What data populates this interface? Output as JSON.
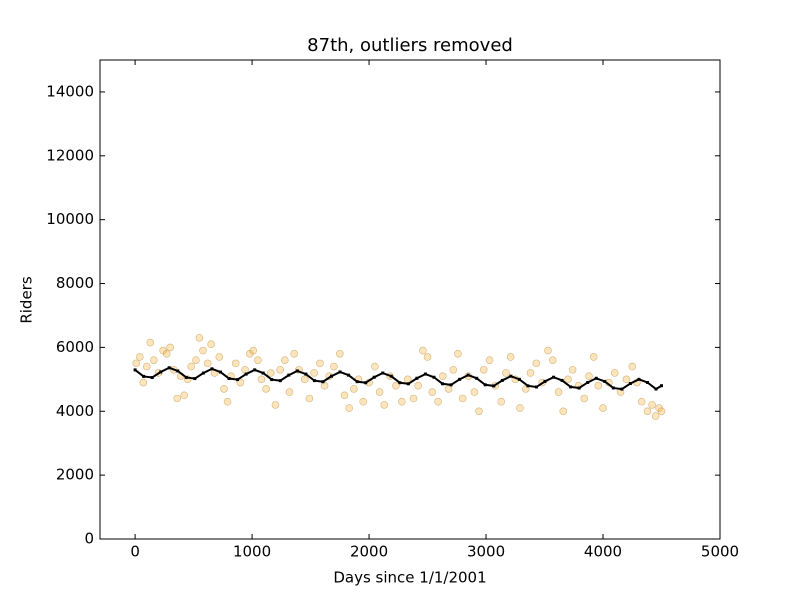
{
  "chart_data": {
    "type": "scatter",
    "title": "87th, outliers removed",
    "xlabel": "Days since 1/1/2001",
    "ylabel": "Riders",
    "xlim": [
      -300,
      5000
    ],
    "ylim": [
      0,
      15000
    ],
    "xticks": [
      0,
      1000,
      2000,
      3000,
      4000,
      5000
    ],
    "yticks": [
      0,
      2000,
      4000,
      6000,
      8000,
      10000,
      12000,
      14000
    ],
    "grid": false,
    "series": [
      {
        "type": "scatter",
        "color": "#f5a623",
        "x": [
          10,
          40,
          70,
          100,
          130,
          160,
          200,
          240,
          270,
          300,
          330,
          360,
          390,
          420,
          450,
          480,
          520,
          550,
          580,
          620,
          650,
          680,
          720,
          760,
          790,
          820,
          860,
          900,
          940,
          980,
          1010,
          1050,
          1080,
          1120,
          1160,
          1200,
          1240,
          1280,
          1320,
          1360,
          1400,
          1450,
          1490,
          1530,
          1580,
          1620,
          1660,
          1700,
          1750,
          1790,
          1830,
          1870,
          1910,
          1950,
          2000,
          2050,
          2090,
          2130,
          2180,
          2230,
          2280,
          2330,
          2380,
          2420,
          2460,
          2500,
          2540,
          2590,
          2630,
          2680,
          2720,
          2760,
          2800,
          2850,
          2900,
          2940,
          2980,
          3030,
          3080,
          3130,
          3170,
          3210,
          3250,
          3290,
          3340,
          3380,
          3430,
          3480,
          3530,
          3570,
          3620,
          3660,
          3700,
          3740,
          3790,
          3840,
          3880,
          3920,
          3960,
          4000,
          4050,
          4100,
          4150,
          4200,
          4250,
          4290,
          4330,
          4380,
          4420,
          4450,
          4480,
          4500
        ],
        "values": [
          5500,
          5700,
          4900,
          5400,
          6150,
          5600,
          5200,
          5900,
          5800,
          6000,
          5300,
          4400,
          5100,
          4500,
          5000,
          5400,
          5600,
          6300,
          5900,
          5500,
          6100,
          5200,
          5700,
          4700,
          4300,
          5100,
          5500,
          4900,
          5300,
          5800,
          5900,
          5600,
          5000,
          4700,
          5200,
          4200,
          5300,
          5600,
          4600,
          5800,
          5300,
          5000,
          4400,
          5200,
          5500,
          4800,
          5100,
          5400,
          5800,
          4500,
          4100,
          4700,
          5000,
          4300,
          4900,
          5400,
          4600,
          4200,
          5100,
          4800,
          4300,
          5000,
          4400,
          4800,
          5900,
          5700,
          4600,
          4300,
          5100,
          4700,
          5300,
          5800,
          4400,
          5100,
          4600,
          4000,
          5300,
          5600,
          4800,
          4300,
          5200,
          5700,
          5000,
          4100,
          4700,
          5200,
          5500,
          4900,
          5900,
          5600,
          4600,
          4000,
          5000,
          5300,
          4800,
          4400,
          5100,
          5700,
          4800,
          4100,
          4900,
          5200,
          4600,
          5000,
          5400,
          4900,
          4300,
          4000,
          4200,
          3850,
          4100,
          4000
        ]
      },
      {
        "type": "line",
        "color": "#000000",
        "x": [
          0,
          73,
          146,
          219,
          292,
          365,
          438,
          511,
          584,
          657,
          730,
          803,
          876,
          949,
          1022,
          1095,
          1168,
          1241,
          1314,
          1387,
          1460,
          1533,
          1606,
          1679,
          1752,
          1825,
          1898,
          1971,
          2044,
          2117,
          2190,
          2263,
          2336,
          2409,
          2482,
          2555,
          2628,
          2701,
          2774,
          2847,
          2920,
          2993,
          3066,
          3139,
          3212,
          3285,
          3358,
          3431,
          3504,
          3577,
          3650,
          3723,
          3796,
          3869,
          3942,
          4015,
          4088,
          4161,
          4234,
          4307,
          4380,
          4453,
          4500
        ],
        "values": [
          5295,
          5091,
          5057,
          5230,
          5362,
          5262,
          5059,
          5024,
          5197,
          5329,
          5229,
          5026,
          4991,
          5165,
          5296,
          5196,
          4993,
          4958,
          5132,
          5263,
          5164,
          4960,
          4925,
          5099,
          5230,
          5131,
          4927,
          4893,
          5066,
          5197,
          5098,
          4894,
          4860,
          5033,
          5165,
          5065,
          4861,
          4827,
          5000,
          5132,
          5032,
          4829,
          4794,
          4967,
          5099,
          4999,
          4796,
          4761,
          4935,
          5066,
          4966,
          4763,
          4728,
          4902,
          5033,
          4934,
          4730,
          4695,
          4869,
          5000,
          4901,
          4697,
          4800
        ]
      }
    ]
  }
}
